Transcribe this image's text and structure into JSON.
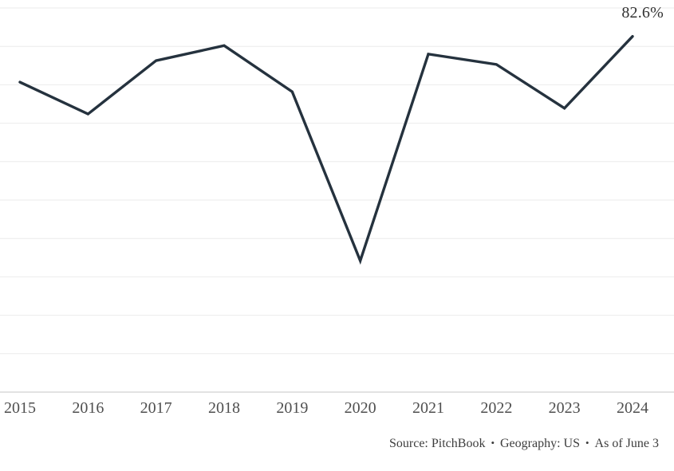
{
  "chart_data": {
    "type": "line",
    "categories": [
      "2015",
      "2016",
      "2017",
      "2018",
      "2019",
      "2020",
      "2021",
      "2022",
      "2023",
      "2024"
    ],
    "values": [
      70.7,
      62.4,
      76.3,
      80.2,
      68.2,
      24.2,
      78.0,
      75.3,
      63.9,
      82.6
    ],
    "end_label": "82.6%",
    "title": "",
    "xlabel": "",
    "ylabel": "",
    "ylim": [
      -10,
      90
    ],
    "grid_step": 10,
    "grid": true,
    "legend": "none",
    "line_color": "#25323e",
    "grid_color": "#ebebeb",
    "baseline_color": "#d8d8d8",
    "tick_label_color": "#4f4f4f",
    "end_label_color": "#323232"
  },
  "footer": {
    "source": "Source: PitchBook",
    "separator": "•",
    "geography": "Geography: US",
    "as_of": "As of June 3"
  }
}
